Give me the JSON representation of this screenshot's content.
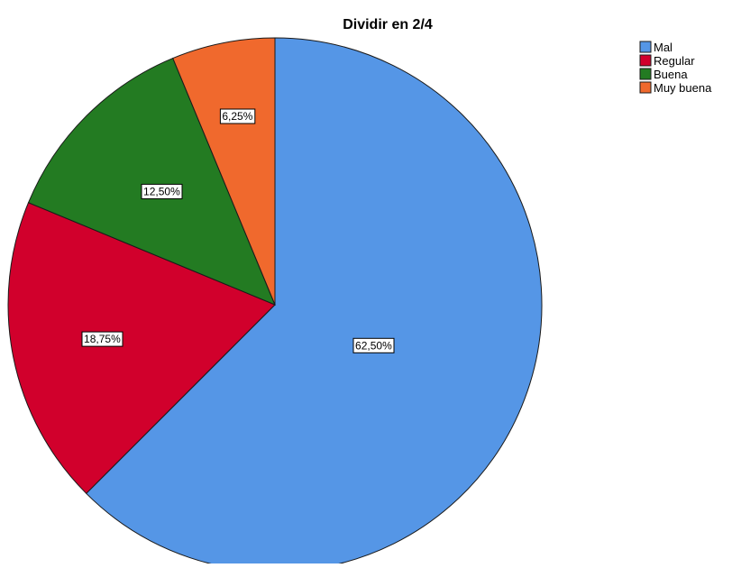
{
  "chart_data": {
    "type": "pie",
    "title": "Dividir en 2/4",
    "start_angle_deg": 0,
    "direction": "clockwise",
    "slices": [
      {
        "label": "Mal",
        "value": 62.5,
        "data_label": "62,50%",
        "color": "#5596e6"
      },
      {
        "label": "Regular",
        "value": 18.75,
        "data_label": "18,75%",
        "color": "#d1002c"
      },
      {
        "label": "Buena",
        "value": 12.5,
        "data_label": "12,50%",
        "color": "#237b22"
      },
      {
        "label": "Muy buena",
        "value": 6.25,
        "data_label": "6,25%",
        "color": "#f0692d"
      }
    ],
    "legend": {
      "position": "top-right",
      "entries": [
        "Mal",
        "Regular",
        "Buena",
        "Muy buena"
      ]
    }
  }
}
